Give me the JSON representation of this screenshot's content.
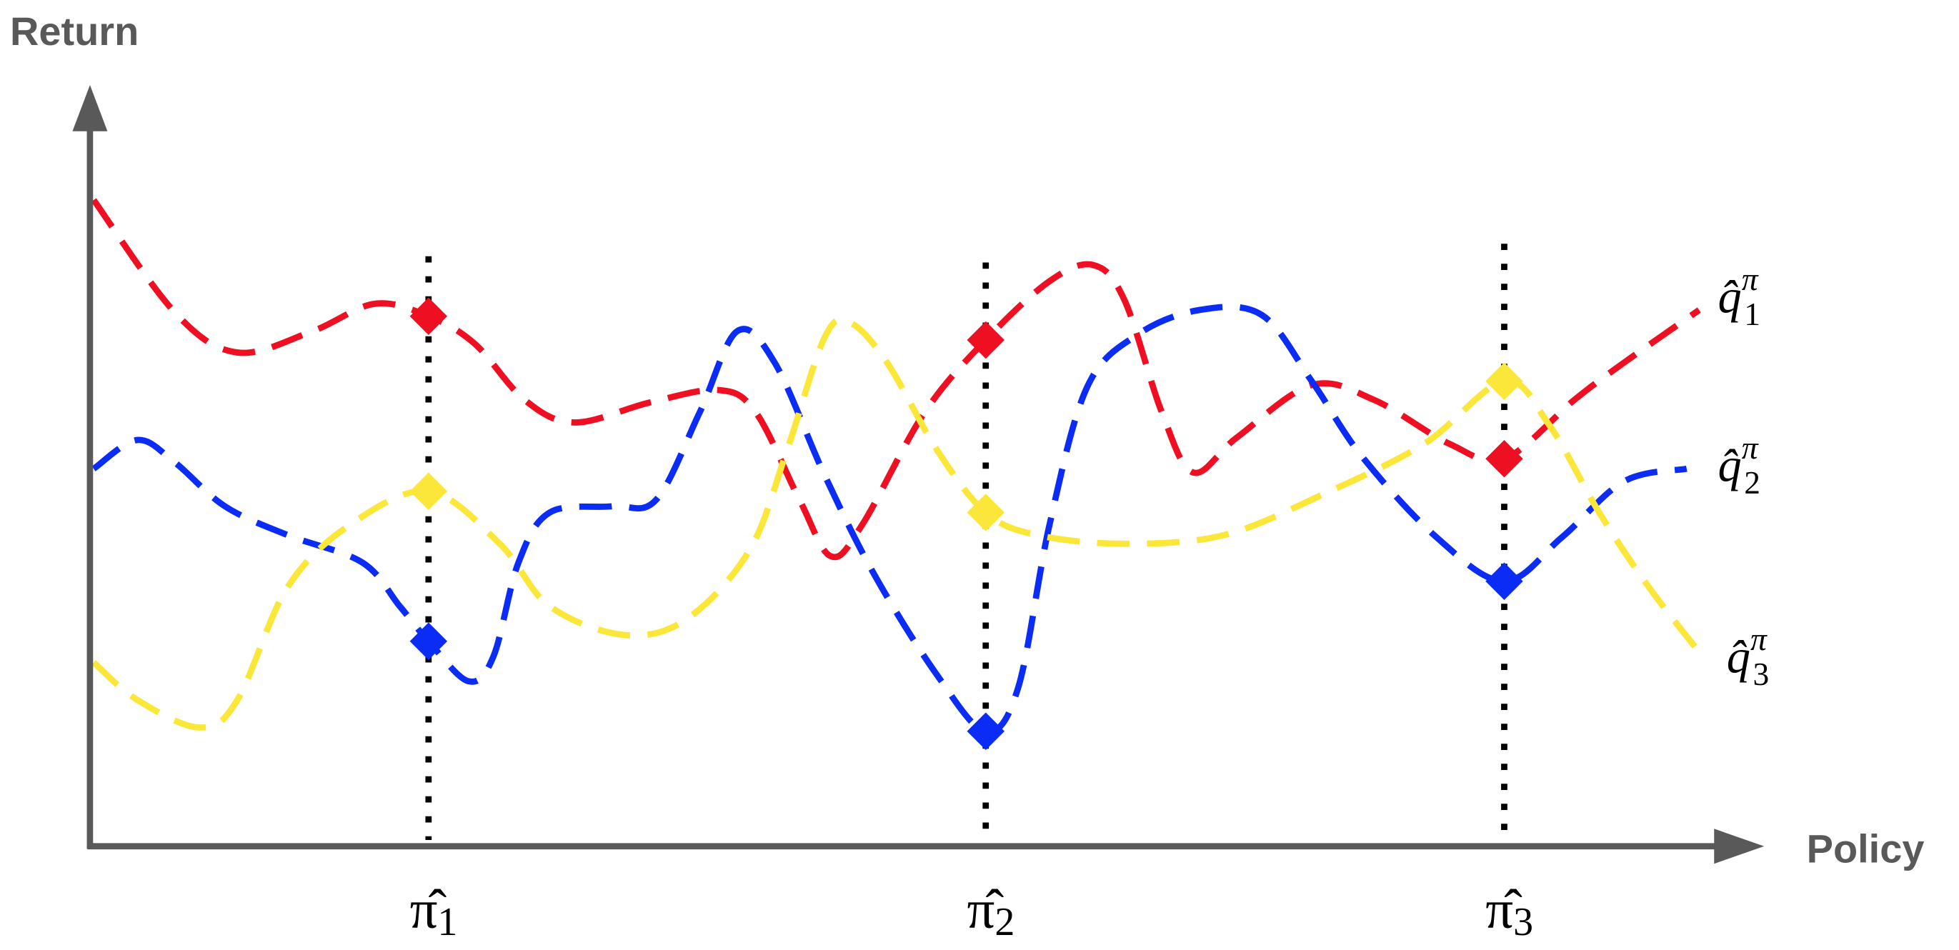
{
  "axes": {
    "y_label": "Return",
    "x_label": "Policy"
  },
  "policies": [
    {
      "symbol": "π̂",
      "subscript": "1"
    },
    {
      "symbol": "π̂",
      "subscript": "2"
    },
    {
      "symbol": "π̂",
      "subscript": "3"
    }
  ],
  "curves": [
    {
      "symbol": "q̂",
      "subscript": "1",
      "superscript": "π"
    },
    {
      "symbol": "q̂",
      "subscript": "2",
      "superscript": "π"
    },
    {
      "symbol": "q̂",
      "subscript": "3",
      "superscript": "π"
    }
  ]
}
